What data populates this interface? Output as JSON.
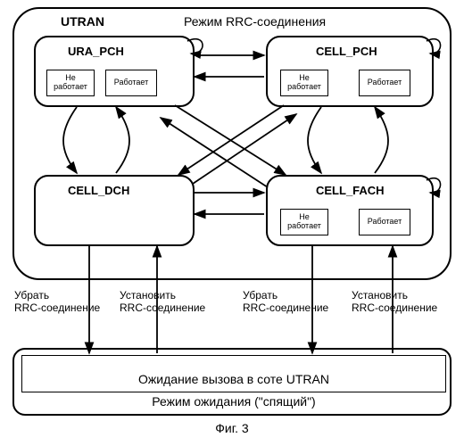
{
  "type": "flowchart",
  "container": {
    "utran": "UTRAN",
    "mode": "Режим RRC-соединения"
  },
  "states": {
    "ura_pch": {
      "title": "URA_PCH",
      "sub1": "Не работает",
      "sub2": "Работает"
    },
    "cell_pch": {
      "title": "CELL_PCH",
      "sub1": "Не работает",
      "sub2": "Работает"
    },
    "cell_dch": {
      "title": "CELL_DCH"
    },
    "cell_fach": {
      "title": "CELL_FACH",
      "sub1": "Не работает",
      "sub2": "Работает"
    }
  },
  "transitions": {
    "remove": "Убрать RRC-соединение",
    "establish": "Установить RRC-соединение"
  },
  "idle": {
    "waiting": "Ожидание вызова в соте UTRAN",
    "mode": "Режим ожидания (\"спящий\")"
  },
  "figure": "Фиг. 3",
  "colors": {
    "line": "#000000",
    "bg": "#ffffff"
  }
}
